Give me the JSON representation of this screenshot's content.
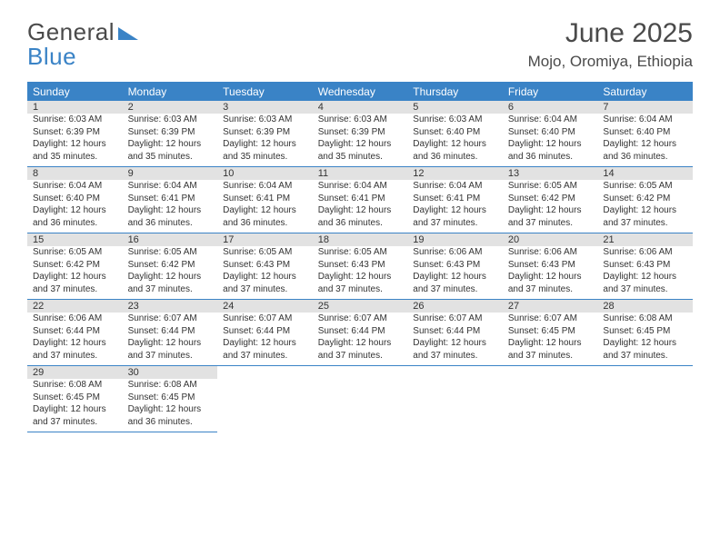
{
  "brand": {
    "word1": "General",
    "word2": "Blue"
  },
  "title": "June 2025",
  "location": "Mojo, Oromiya, Ethiopia",
  "colors": {
    "accent": "#3a83c6",
    "header_text": "#ffffff",
    "daynum_bg": "#e2e2e2",
    "body_text": "#333333",
    "page_bg": "#ffffff",
    "title_text": "#4a4a4a"
  },
  "weekdays": [
    "Sunday",
    "Monday",
    "Tuesday",
    "Wednesday",
    "Thursday",
    "Friday",
    "Saturday"
  ],
  "days": [
    {
      "n": "1",
      "sunrise": "Sunrise: 6:03 AM",
      "sunset": "Sunset: 6:39 PM",
      "d1": "Daylight: 12 hours",
      "d2": "and 35 minutes."
    },
    {
      "n": "2",
      "sunrise": "Sunrise: 6:03 AM",
      "sunset": "Sunset: 6:39 PM",
      "d1": "Daylight: 12 hours",
      "d2": "and 35 minutes."
    },
    {
      "n": "3",
      "sunrise": "Sunrise: 6:03 AM",
      "sunset": "Sunset: 6:39 PM",
      "d1": "Daylight: 12 hours",
      "d2": "and 35 minutes."
    },
    {
      "n": "4",
      "sunrise": "Sunrise: 6:03 AM",
      "sunset": "Sunset: 6:39 PM",
      "d1": "Daylight: 12 hours",
      "d2": "and 35 minutes."
    },
    {
      "n": "5",
      "sunrise": "Sunrise: 6:03 AM",
      "sunset": "Sunset: 6:40 PM",
      "d1": "Daylight: 12 hours",
      "d2": "and 36 minutes."
    },
    {
      "n": "6",
      "sunrise": "Sunrise: 6:04 AM",
      "sunset": "Sunset: 6:40 PM",
      "d1": "Daylight: 12 hours",
      "d2": "and 36 minutes."
    },
    {
      "n": "7",
      "sunrise": "Sunrise: 6:04 AM",
      "sunset": "Sunset: 6:40 PM",
      "d1": "Daylight: 12 hours",
      "d2": "and 36 minutes."
    },
    {
      "n": "8",
      "sunrise": "Sunrise: 6:04 AM",
      "sunset": "Sunset: 6:40 PM",
      "d1": "Daylight: 12 hours",
      "d2": "and 36 minutes."
    },
    {
      "n": "9",
      "sunrise": "Sunrise: 6:04 AM",
      "sunset": "Sunset: 6:41 PM",
      "d1": "Daylight: 12 hours",
      "d2": "and 36 minutes."
    },
    {
      "n": "10",
      "sunrise": "Sunrise: 6:04 AM",
      "sunset": "Sunset: 6:41 PM",
      "d1": "Daylight: 12 hours",
      "d2": "and 36 minutes."
    },
    {
      "n": "11",
      "sunrise": "Sunrise: 6:04 AM",
      "sunset": "Sunset: 6:41 PM",
      "d1": "Daylight: 12 hours",
      "d2": "and 36 minutes."
    },
    {
      "n": "12",
      "sunrise": "Sunrise: 6:04 AM",
      "sunset": "Sunset: 6:41 PM",
      "d1": "Daylight: 12 hours",
      "d2": "and 37 minutes."
    },
    {
      "n": "13",
      "sunrise": "Sunrise: 6:05 AM",
      "sunset": "Sunset: 6:42 PM",
      "d1": "Daylight: 12 hours",
      "d2": "and 37 minutes."
    },
    {
      "n": "14",
      "sunrise": "Sunrise: 6:05 AM",
      "sunset": "Sunset: 6:42 PM",
      "d1": "Daylight: 12 hours",
      "d2": "and 37 minutes."
    },
    {
      "n": "15",
      "sunrise": "Sunrise: 6:05 AM",
      "sunset": "Sunset: 6:42 PM",
      "d1": "Daylight: 12 hours",
      "d2": "and 37 minutes."
    },
    {
      "n": "16",
      "sunrise": "Sunrise: 6:05 AM",
      "sunset": "Sunset: 6:42 PM",
      "d1": "Daylight: 12 hours",
      "d2": "and 37 minutes."
    },
    {
      "n": "17",
      "sunrise": "Sunrise: 6:05 AM",
      "sunset": "Sunset: 6:43 PM",
      "d1": "Daylight: 12 hours",
      "d2": "and 37 minutes."
    },
    {
      "n": "18",
      "sunrise": "Sunrise: 6:05 AM",
      "sunset": "Sunset: 6:43 PM",
      "d1": "Daylight: 12 hours",
      "d2": "and 37 minutes."
    },
    {
      "n": "19",
      "sunrise": "Sunrise: 6:06 AM",
      "sunset": "Sunset: 6:43 PM",
      "d1": "Daylight: 12 hours",
      "d2": "and 37 minutes."
    },
    {
      "n": "20",
      "sunrise": "Sunrise: 6:06 AM",
      "sunset": "Sunset: 6:43 PM",
      "d1": "Daylight: 12 hours",
      "d2": "and 37 minutes."
    },
    {
      "n": "21",
      "sunrise": "Sunrise: 6:06 AM",
      "sunset": "Sunset: 6:43 PM",
      "d1": "Daylight: 12 hours",
      "d2": "and 37 minutes."
    },
    {
      "n": "22",
      "sunrise": "Sunrise: 6:06 AM",
      "sunset": "Sunset: 6:44 PM",
      "d1": "Daylight: 12 hours",
      "d2": "and 37 minutes."
    },
    {
      "n": "23",
      "sunrise": "Sunrise: 6:07 AM",
      "sunset": "Sunset: 6:44 PM",
      "d1": "Daylight: 12 hours",
      "d2": "and 37 minutes."
    },
    {
      "n": "24",
      "sunrise": "Sunrise: 6:07 AM",
      "sunset": "Sunset: 6:44 PM",
      "d1": "Daylight: 12 hours",
      "d2": "and 37 minutes."
    },
    {
      "n": "25",
      "sunrise": "Sunrise: 6:07 AM",
      "sunset": "Sunset: 6:44 PM",
      "d1": "Daylight: 12 hours",
      "d2": "and 37 minutes."
    },
    {
      "n": "26",
      "sunrise": "Sunrise: 6:07 AM",
      "sunset": "Sunset: 6:44 PM",
      "d1": "Daylight: 12 hours",
      "d2": "and 37 minutes."
    },
    {
      "n": "27",
      "sunrise": "Sunrise: 6:07 AM",
      "sunset": "Sunset: 6:45 PM",
      "d1": "Daylight: 12 hours",
      "d2": "and 37 minutes."
    },
    {
      "n": "28",
      "sunrise": "Sunrise: 6:08 AM",
      "sunset": "Sunset: 6:45 PM",
      "d1": "Daylight: 12 hours",
      "d2": "and 37 minutes."
    },
    {
      "n": "29",
      "sunrise": "Sunrise: 6:08 AM",
      "sunset": "Sunset: 6:45 PM",
      "d1": "Daylight: 12 hours",
      "d2": "and 37 minutes."
    },
    {
      "n": "30",
      "sunrise": "Sunrise: 6:08 AM",
      "sunset": "Sunset: 6:45 PM",
      "d1": "Daylight: 12 hours",
      "d2": "and 36 minutes."
    }
  ]
}
